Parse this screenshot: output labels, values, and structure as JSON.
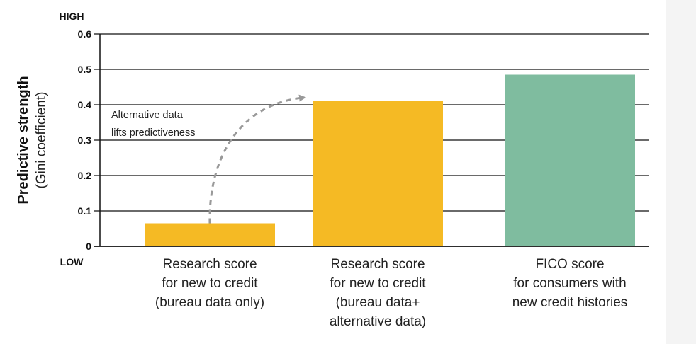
{
  "chart_data": {
    "type": "bar",
    "categories": [
      [
        "Research score",
        "for new to credit",
        "(bureau data only)"
      ],
      [
        "Research score",
        "for new to credit",
        "(bureau data+",
        "alternative data)"
      ],
      [
        "FICO score",
        "for consumers with",
        "new credit histories"
      ]
    ],
    "values": [
      0.065,
      0.41,
      0.485
    ],
    "colors": [
      "#F5BA24",
      "#F5BA24",
      "#7FBC9F"
    ],
    "ylabel": [
      "Predictive strength",
      "(Gini coefficient)"
    ],
    "yticks": [
      "0",
      "0.1",
      "0.2",
      "0.3",
      "0.4",
      "0.5",
      "0.6"
    ],
    "ylim": [
      0,
      0.6
    ],
    "y_high_label": "HIGH",
    "y_low_label": "LOW",
    "grid": true,
    "annotation": {
      "lines": [
        "Alternative data",
        "lifts predictiveness"
      ],
      "arrow_from_category": 0,
      "arrow_to_category": 1,
      "arrow_style": "dashed-curved",
      "arrow_color": "#999999"
    }
  }
}
